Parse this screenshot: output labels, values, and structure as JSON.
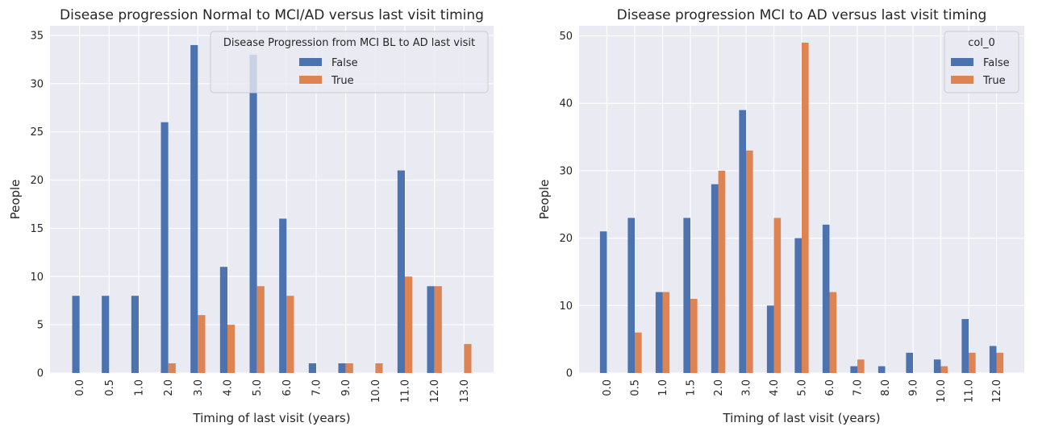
{
  "colors": {
    "background": "#eaeaf2",
    "grid": "#ffffff",
    "false_series": "#4c72b0",
    "true_series": "#dd8452",
    "text": "#262626"
  },
  "chart_data": [
    {
      "type": "bar",
      "title": "Disease progression Normal to MCI/AD versus last visit timing",
      "xlabel": "Timing of last visit (years)",
      "ylabel": "People",
      "categories": [
        "0.0",
        "0.5",
        "1.0",
        "2.0",
        "3.0",
        "4.0",
        "5.0",
        "6.0",
        "7.0",
        "9.0",
        "10.0",
        "11.0",
        "12.0",
        "13.0"
      ],
      "ylim": [
        0,
        36
      ],
      "yticks": [
        "0",
        "5",
        "10",
        "15",
        "20",
        "25",
        "30",
        "35"
      ],
      "ytick_values": [
        0,
        5,
        10,
        15,
        20,
        25,
        30,
        35
      ],
      "grid": true,
      "legend": {
        "title": "Disease Progression from MCI BL to AD last visit",
        "placement": "top-right"
      },
      "series": [
        {
          "name": "False",
          "values": [
            8,
            8,
            8,
            26,
            34,
            11,
            33,
            16,
            1,
            1,
            0,
            21,
            9,
            0
          ]
        },
        {
          "name": "True",
          "values": [
            0,
            0,
            0,
            1,
            6,
            5,
            9,
            8,
            0,
            1,
            1,
            10,
            9,
            3
          ]
        }
      ]
    },
    {
      "type": "bar",
      "title": "Disease progression MCI to AD versus last visit timing",
      "xlabel": "Timing of last visit (years)",
      "ylabel": "People",
      "categories": [
        "0.0",
        "0.5",
        "1.0",
        "1.5",
        "2.0",
        "3.0",
        "4.0",
        "5.0",
        "6.0",
        "7.0",
        "8.0",
        "9.0",
        "10.0",
        "11.0",
        "12.0"
      ],
      "ylim": [
        0,
        51.5
      ],
      "yticks": [
        "0",
        "10",
        "20",
        "30",
        "40",
        "50"
      ],
      "ytick_values": [
        0,
        10,
        20,
        30,
        40,
        50
      ],
      "grid": true,
      "legend": {
        "title": "col_0",
        "placement": "top-right"
      },
      "series": [
        {
          "name": "False",
          "values": [
            21,
            23,
            12,
            23,
            28,
            39,
            10,
            20,
            22,
            1,
            1,
            3,
            2,
            8,
            4
          ]
        },
        {
          "name": "True",
          "values": [
            0,
            6,
            12,
            11,
            30,
            33,
            23,
            49,
            12,
            2,
            0,
            0,
            1,
            3,
            3
          ]
        }
      ]
    }
  ]
}
